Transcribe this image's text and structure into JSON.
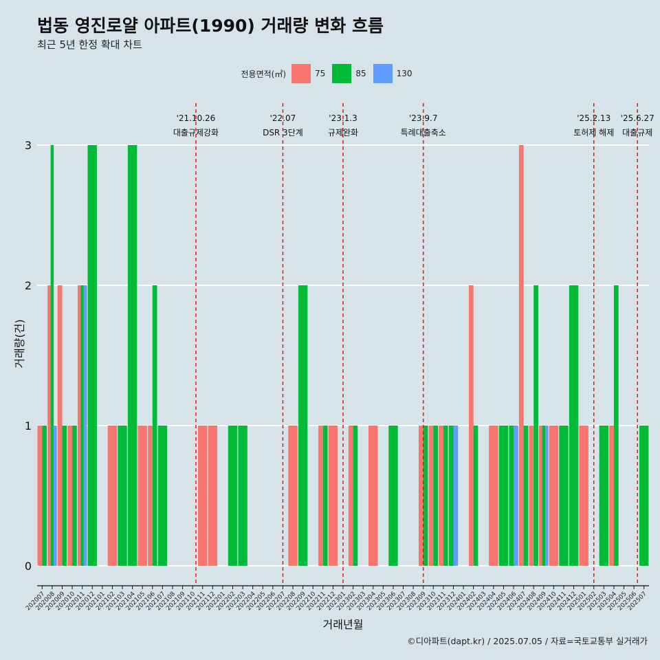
{
  "title": "법동 영진로얄 아파트(1990) 거래량 변화 흐름",
  "subtitle": "최근 5년 한정 확대 차트",
  "caption": "©디아파트(dapt.kr) / 2025.07.05 / 자료=국토교통부 실거래가",
  "legend": {
    "title": "전용면적(㎡)",
    "items": [
      {
        "label": "75",
        "color": "#f8766d"
      },
      {
        "label": "85",
        "color": "#00ba38"
      },
      {
        "label": "130",
        "color": "#619cff"
      }
    ]
  },
  "chart_data": {
    "type": "bar",
    "xlabel": "거래년월",
    "ylabel": "거래량(건)",
    "ylim": [
      0,
      3
    ],
    "yticks": [
      0,
      1,
      2,
      3
    ],
    "grid": true,
    "legend_position": "top",
    "categories": [
      "202007",
      "202008",
      "202009",
      "202010",
      "202011",
      "202012",
      "202101",
      "202102",
      "202103",
      "202104",
      "202105",
      "202106",
      "202107",
      "202108",
      "202109",
      "202110",
      "202111",
      "202112",
      "202201",
      "202202",
      "202203",
      "202204",
      "202205",
      "202206",
      "202207",
      "202208",
      "202209",
      "202210",
      "202211",
      "202212",
      "202301",
      "202302",
      "202303",
      "202304",
      "202305",
      "202306",
      "202307",
      "202308",
      "202309",
      "202310",
      "202311",
      "202312",
      "202401",
      "202402",
      "202403",
      "202404",
      "202405",
      "202406",
      "202407",
      "202408",
      "202409",
      "202410",
      "202411",
      "202412",
      "202501",
      "202502",
      "202503",
      "202504",
      "202505",
      "202506",
      "202507"
    ],
    "series": [
      {
        "name": "75",
        "color": "#f8766d",
        "values": [
          1,
          2,
          2,
          1,
          2,
          0,
          0,
          1,
          0,
          0,
          1,
          1,
          0,
          0,
          0,
          0,
          1,
          1,
          0,
          0,
          0,
          0,
          0,
          0,
          0,
          1,
          0,
          0,
          1,
          1,
          0,
          1,
          0,
          1,
          0,
          0,
          0,
          0,
          1,
          1,
          1,
          0,
          0,
          2,
          0,
          1,
          0,
          0,
          3,
          1,
          1,
          1,
          0,
          0,
          1,
          0,
          0,
          1,
          0,
          0,
          0
        ]
      },
      {
        "name": "85",
        "color": "#00ba38",
        "values": [
          1,
          3,
          1,
          1,
          2,
          3,
          0,
          0,
          1,
          3,
          0,
          2,
          1,
          0,
          0,
          0,
          0,
          0,
          0,
          1,
          1,
          0,
          0,
          0,
          0,
          0,
          2,
          0,
          1,
          0,
          0,
          1,
          0,
          0,
          0,
          1,
          0,
          0,
          1,
          1,
          1,
          1,
          0,
          1,
          0,
          0,
          1,
          1,
          1,
          2,
          1,
          0,
          1,
          2,
          0,
          0,
          1,
          2,
          0,
          0,
          1
        ]
      },
      {
        "name": "130",
        "color": "#619cff",
        "values": [
          0,
          1,
          0,
          0,
          2,
          0,
          0,
          0,
          0,
          0,
          0,
          0,
          0,
          0,
          0,
          0,
          0,
          0,
          0,
          0,
          0,
          0,
          0,
          0,
          0,
          0,
          0,
          0,
          0,
          0,
          0,
          0,
          0,
          0,
          0,
          0,
          0,
          0,
          0,
          0,
          0,
          1,
          0,
          0,
          0,
          0,
          0,
          1,
          0,
          0,
          1,
          0,
          0,
          0,
          0,
          0,
          0,
          0,
          0,
          0,
          0
        ]
      }
    ],
    "annotations": [
      {
        "date": "'21.10.26",
        "label": "대출규제강화",
        "x": "202110",
        "offset": 0.83
      },
      {
        "date": "'22.07",
        "label": "DSR 3단계",
        "x": "202207",
        "offset": 0.5
      },
      {
        "date": "'23.1.3",
        "label": "규제완화",
        "x": "202301",
        "offset": 0.5
      },
      {
        "date": "'23.9.7",
        "label": "특례대출축소",
        "x": "202309",
        "offset": 0.5
      },
      {
        "date": "'25.2.13",
        "label": "토허제 해제",
        "x": "202502",
        "offset": 0.5
      },
      {
        "date": "'25.6.27",
        "label": "대출규제",
        "x": "202506",
        "offset": 0.85
      }
    ]
  }
}
